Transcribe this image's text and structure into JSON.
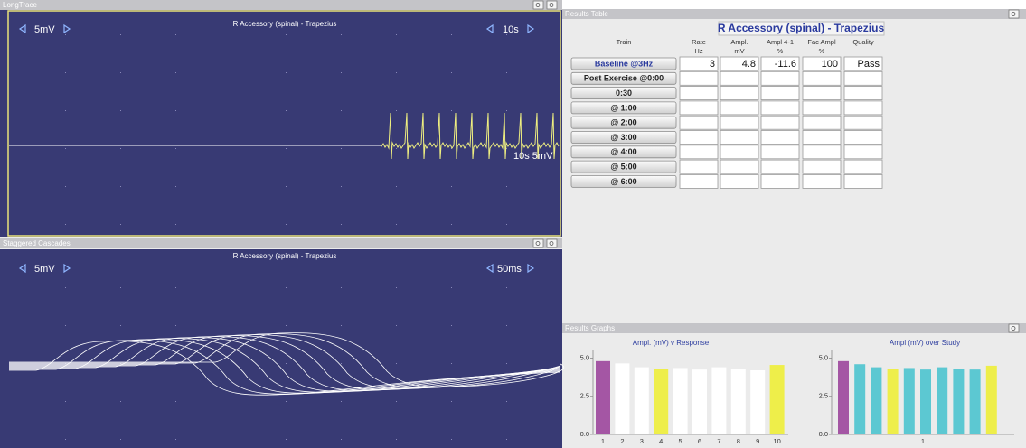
{
  "long_trace": {
    "title": "LongTrace",
    "sensitivity": "5mV",
    "label": "R Accessory (spinal) - Trapezius",
    "timebase": "10s",
    "scale_label": "10s 5mV"
  },
  "cascades": {
    "title": "Staggered Cascades",
    "sensitivity": "5mV",
    "label": "R Accessory (spinal) - Trapezius",
    "timebase": "50ms"
  },
  "results_table": {
    "title": "Results Table",
    "heading": "R Accessory (spinal) - Trapezius",
    "columns": [
      {
        "name": "Train"
      },
      {
        "name": "Rate",
        "unit": "Hz"
      },
      {
        "name": "Ampl.",
        "unit": "mV"
      },
      {
        "name": "Ampl 4-1",
        "unit": "%"
      },
      {
        "name": "Fac Ampl",
        "unit": "%"
      },
      {
        "name": "Quality"
      }
    ],
    "rows": [
      {
        "train": "Baseline @3Hz",
        "cells": [
          3,
          4.8,
          -11.6,
          100,
          "Pass"
        ]
      },
      {
        "train": "Post Exercise @0:00"
      },
      {
        "train": "0:30"
      },
      {
        "train": "@ 1:00"
      },
      {
        "train": "@ 2:00"
      },
      {
        "train": "@ 3:00"
      },
      {
        "train": "@ 4:00"
      },
      {
        "train": "@ 5:00"
      },
      {
        "train": "@ 6:00"
      }
    ]
  },
  "results_graphs": {
    "title": "Results Graphs"
  },
  "chart_data": [
    {
      "type": "bar",
      "title": "Ampl. (mV) v Response",
      "categories": [
        "1",
        "2",
        "3",
        "4",
        "5",
        "6",
        "7",
        "8",
        "9",
        "10"
      ],
      "values": [
        4.8,
        4.65,
        4.4,
        4.3,
        4.35,
        4.25,
        4.4,
        4.3,
        4.2,
        4.55
      ],
      "colors": [
        "#a456a4",
        "#ffffff",
        "#ffffff",
        "#eeee4a",
        "#ffffff",
        "#ffffff",
        "#ffffff",
        "#ffffff",
        "#ffffff",
        "#eeee4a"
      ],
      "ylim": [
        0,
        5.5
      ],
      "yticks": [
        {
          "value": 0,
          "label": "0.0"
        },
        {
          "value": 2.5,
          "label": "2.5"
        },
        {
          "value": 5,
          "label": "5.0"
        }
      ]
    },
    {
      "type": "bar",
      "title": "Ampl (mV) over Study",
      "xlabel": "1",
      "values": [
        4.8,
        4.6,
        4.4,
        4.3,
        4.35,
        4.25,
        4.4,
        4.3,
        4.25,
        4.5
      ],
      "colors": [
        "#a456a4",
        "#5cc8d2",
        "#5cc8d2",
        "#eeee4a",
        "#5cc8d2",
        "#5cc8d2",
        "#5cc8d2",
        "#5cc8d2",
        "#5cc8d2",
        "#eeee4a"
      ],
      "ylim": [
        0,
        5.5
      ],
      "yticks": [
        {
          "value": 0,
          "label": "0.0"
        },
        {
          "value": 2.5,
          "label": "2.5"
        },
        {
          "value": 5,
          "label": "5.0"
        }
      ]
    }
  ]
}
